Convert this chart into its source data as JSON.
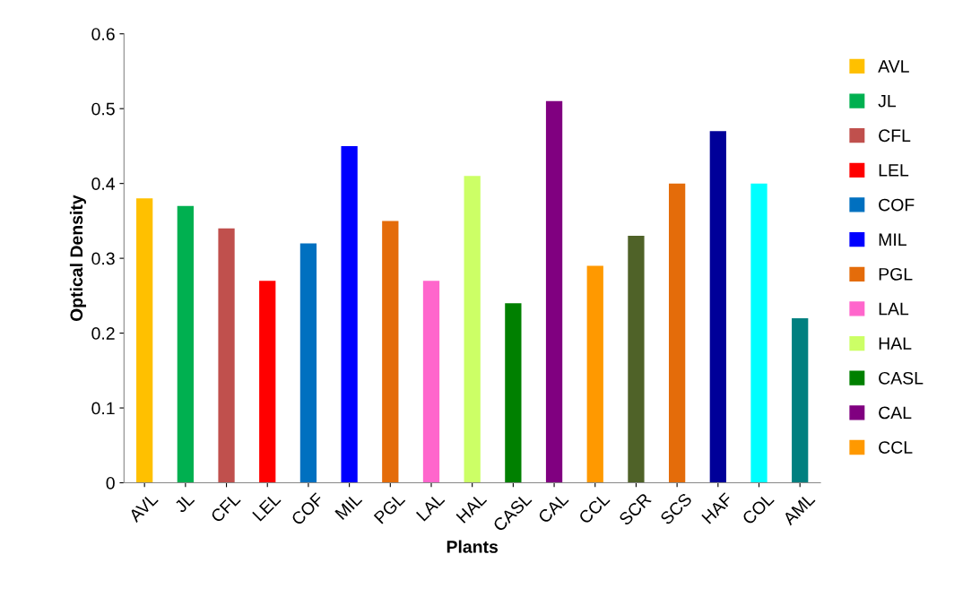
{
  "chart_data": {
    "type": "bar",
    "xlabel": "Plants",
    "ylabel": "Optical Density",
    "categories": [
      "AVL",
      "JL",
      "CFL",
      "LEL",
      "COF",
      "MIL",
      "PGL",
      "LAL",
      "HAL",
      "CASL",
      "CAL",
      "CCL",
      "SCR",
      "SCS",
      "HAF",
      "COL",
      "AML"
    ],
    "series": [
      {
        "name": "AVL",
        "color": "#ffc000",
        "values": [
          0.38,
          null,
          null,
          null,
          null,
          null,
          null,
          null,
          null,
          null,
          null,
          null,
          null,
          null,
          null,
          null,
          null
        ]
      },
      {
        "name": "JL",
        "color": "#00b050",
        "values": [
          null,
          0.37,
          null,
          null,
          null,
          null,
          null,
          null,
          null,
          null,
          null,
          null,
          null,
          null,
          null,
          null,
          null
        ]
      },
      {
        "name": "CFL",
        "color": "#c0504d",
        "values": [
          null,
          null,
          0.34,
          null,
          null,
          null,
          null,
          null,
          null,
          null,
          null,
          null,
          null,
          null,
          null,
          null,
          null
        ]
      },
      {
        "name": "LEL",
        "color": "#ff0000",
        "values": [
          null,
          null,
          null,
          0.27,
          null,
          null,
          null,
          null,
          null,
          null,
          null,
          null,
          null,
          null,
          null,
          null,
          null
        ]
      },
      {
        "name": "COF",
        "color": "#0070c0",
        "values": [
          null,
          null,
          null,
          null,
          0.32,
          null,
          null,
          null,
          null,
          null,
          null,
          null,
          null,
          null,
          null,
          null,
          null
        ]
      },
      {
        "name": "MIL",
        "color": "#0000ff",
        "values": [
          null,
          null,
          null,
          null,
          null,
          0.45,
          null,
          null,
          null,
          null,
          null,
          null,
          null,
          null,
          null,
          null,
          null
        ]
      },
      {
        "name": "PGL",
        "color": "#e46c0a",
        "values": [
          null,
          null,
          null,
          null,
          null,
          null,
          0.35,
          null,
          null,
          null,
          null,
          null,
          null,
          null,
          null,
          null,
          null
        ]
      },
      {
        "name": "LAL",
        "color": "#ff66cc",
        "values": [
          null,
          null,
          null,
          null,
          null,
          null,
          null,
          0.27,
          null,
          null,
          null,
          null,
          null,
          null,
          null,
          null,
          null
        ]
      },
      {
        "name": "HAL",
        "color": "#ccff66",
        "values": [
          null,
          null,
          null,
          null,
          null,
          null,
          null,
          null,
          0.41,
          null,
          null,
          null,
          null,
          null,
          null,
          null,
          null
        ]
      },
      {
        "name": "CASL",
        "color": "#008000",
        "values": [
          null,
          null,
          null,
          null,
          null,
          null,
          null,
          null,
          null,
          0.24,
          null,
          null,
          null,
          null,
          null,
          null,
          null
        ]
      },
      {
        "name": "CAL",
        "color": "#800080",
        "values": [
          null,
          null,
          null,
          null,
          null,
          null,
          null,
          null,
          null,
          null,
          0.51,
          null,
          null,
          null,
          null,
          null,
          null
        ]
      },
      {
        "name": "CCL",
        "color": "#ff9900",
        "values": [
          null,
          null,
          null,
          null,
          null,
          null,
          null,
          null,
          null,
          null,
          null,
          0.29,
          null,
          null,
          null,
          null,
          null
        ]
      },
      {
        "color": "#4f6228",
        "values": [
          null,
          null,
          null,
          null,
          null,
          null,
          null,
          null,
          null,
          null,
          null,
          null,
          0.33,
          null,
          null,
          null,
          null
        ]
      },
      {
        "color": "#e46c0a",
        "values": [
          null,
          null,
          null,
          null,
          null,
          null,
          null,
          null,
          null,
          null,
          null,
          null,
          null,
          0.4,
          null,
          null,
          null
        ]
      },
      {
        "color": "#000099",
        "values": [
          null,
          null,
          null,
          null,
          null,
          null,
          null,
          null,
          null,
          null,
          null,
          null,
          null,
          null,
          0.47,
          null,
          null
        ]
      },
      {
        "color": "#00ffff",
        "values": [
          null,
          null,
          null,
          null,
          null,
          null,
          null,
          null,
          null,
          null,
          null,
          null,
          null,
          null,
          null,
          0.4,
          null
        ]
      },
      {
        "color": "#008080",
        "values": [
          null,
          null,
          null,
          null,
          null,
          null,
          null,
          null,
          null,
          null,
          null,
          null,
          null,
          null,
          null,
          null,
          0.22
        ]
      }
    ],
    "ylim": [
      0,
      0.6
    ],
    "yticks": [
      0,
      0.1,
      0.2,
      0.3,
      0.4,
      0.5,
      0.6
    ],
    "grid": false,
    "legend": "right"
  }
}
